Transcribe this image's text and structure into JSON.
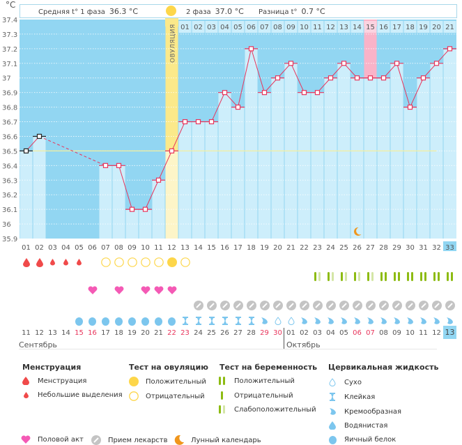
{
  "header": {
    "unit": "°C",
    "phase1_label": "Средняя t° 1 фаза",
    "phase1_value": "36.3 °C",
    "phase2_label": "2 фаза",
    "phase2_value": "37.0 °C",
    "diff_label": "Разница t°",
    "diff_value": "0.7 °C",
    "ovulation_label": "ОВУЛЯЦИЯ"
  },
  "colors": {
    "bg": "#92d6f2",
    "bar": "#cdeefb",
    "ovulation": "#fbe98a",
    "ovulation_light": "#fdf5c8",
    "highlight": "#f9b3c8",
    "line": "#e8345b",
    "coverline": "#f4ef9e",
    "today": "#92d6f2"
  },
  "chart_data": {
    "type": "line",
    "title": "",
    "ylabel": "°C",
    "ylim": [
      35.9,
      37.4
    ],
    "yticks": [
      37.4,
      37.3,
      37.2,
      37.1,
      37.0,
      36.9,
      36.8,
      36.7,
      36.6,
      36.5,
      36.4,
      36.3,
      36.2,
      36.1,
      36.0,
      35.9
    ],
    "ytick_labels": [
      "37.4",
      "37.3",
      "37.2",
      "37.1",
      "37",
      "36.9",
      "36.8",
      "36.7",
      "36.6",
      "36.5",
      "36.4",
      "36.3",
      "36.2",
      "36.1",
      "36",
      "35.9"
    ],
    "cycle_days": [
      "01",
      "02",
      "03",
      "04",
      "05",
      "06",
      "07",
      "08",
      "09",
      "10",
      "11",
      "12",
      "13",
      "14",
      "15",
      "16",
      "17",
      "18",
      "19",
      "20",
      "21",
      "22",
      "23",
      "24",
      "25",
      "26",
      "27",
      "28",
      "29",
      "30",
      "31",
      "32",
      "33"
    ],
    "temperatures": [
      36.5,
      36.6,
      null,
      null,
      null,
      null,
      36.4,
      36.4,
      36.1,
      36.1,
      36.3,
      36.5,
      36.7,
      36.7,
      36.7,
      36.9,
      36.8,
      37.2,
      36.9,
      37.0,
      37.1,
      36.9,
      36.9,
      37.0,
      37.1,
      37.0,
      37.0,
      37.0,
      37.1,
      36.8,
      37.0,
      37.1,
      37.2
    ],
    "excluded_points": [
      0,
      1
    ],
    "coverline": 36.5,
    "ovulation_day": 12,
    "phase2_day_numbers": [
      "01",
      "02",
      "03",
      "04",
      "05",
      "06",
      "07",
      "08",
      "09",
      "10",
      "11",
      "12",
      "13",
      "14",
      "15",
      "16",
      "17",
      "18",
      "19",
      "20",
      "21"
    ],
    "highlight_phase2_day": "15",
    "moon_day": 26,
    "today_day": 33
  },
  "calendar": {
    "dates": [
      "11",
      "12",
      "13",
      "14",
      "15",
      "16",
      "17",
      "18",
      "19",
      "20",
      "21",
      "22",
      "23",
      "24",
      "25",
      "26",
      "27",
      "28",
      "29",
      "30",
      "01",
      "02",
      "03",
      "04",
      "05",
      "06",
      "07",
      "08",
      "09",
      "10",
      "11",
      "12",
      "13"
    ],
    "weekend_idx": [
      4,
      5,
      11,
      12,
      18,
      19,
      25,
      26
    ],
    "month1": "Сентябрь",
    "month2": "Октябрь",
    "month2_start_idx": 20
  },
  "rows": {
    "menstruation": [
      "big",
      "big",
      "small",
      "small",
      "small",
      "",
      "",
      "",
      "",
      "",
      "",
      "",
      "",
      "",
      "",
      "",
      "",
      "",
      "",
      "",
      "",
      "",
      "",
      "",
      "",
      "",
      "",
      "",
      "",
      "",
      "",
      "",
      ""
    ],
    "ovulation_test": [
      "",
      "",
      "",
      "",
      "",
      "",
      "neg",
      "neg",
      "neg",
      "neg",
      "neg",
      "pos",
      "neg",
      "",
      "",
      "",
      "",
      "",
      "",
      "",
      "",
      "",
      "",
      "",
      "",
      "",
      "",
      "",
      "",
      "",
      "",
      "",
      ""
    ],
    "pregnancy_test": [
      "",
      "",
      "",
      "",
      "",
      "",
      "",
      "",
      "",
      "",
      "",
      "",
      "",
      "",
      "",
      "",
      "",
      "",
      "",
      "",
      "",
      "",
      "weak",
      "weak",
      "weak",
      "weak",
      "weak",
      "pos",
      "pos",
      "pos",
      "pos",
      "pos",
      "pos"
    ],
    "intercourse": [
      "",
      "",
      "",
      "",
      "",
      "yes",
      "",
      "yes",
      "",
      "yes",
      "yes",
      "yes",
      "",
      "",
      "",
      "",
      "",
      "",
      "",
      "",
      "",
      "",
      "",
      "",
      "",
      "",
      "",
      "",
      "",
      "",
      "",
      "",
      ""
    ],
    "medication": [
      "",
      "",
      "",
      "",
      "",
      "",
      "",
      "",
      "",
      "",
      "",
      "",
      "",
      "yes",
      "yes",
      "yes",
      "yes",
      "yes",
      "yes",
      "yes",
      "yes",
      "yes",
      "yes",
      "yes",
      "yes",
      "yes",
      "yes",
      "yes",
      "yes",
      "yes",
      "yes",
      "yes",
      "yes"
    ],
    "fluid": [
      "",
      "",
      "",
      "",
      "egg",
      "egg",
      "egg",
      "egg",
      "egg",
      "egg",
      "egg",
      "egg",
      "sticky",
      "sticky",
      "sticky",
      "sticky",
      "sticky",
      "sticky",
      "creamy",
      "dry",
      "dry",
      "creamy",
      "creamy",
      "creamy",
      "creamy",
      "creamy",
      "creamy",
      "creamy",
      "creamy",
      "creamy",
      "creamy",
      "creamy",
      "creamy"
    ]
  },
  "legend": {
    "menstruation": {
      "title": "Менструация",
      "items": [
        "Менструация",
        "Небольшие выделения"
      ]
    },
    "ovulation_test": {
      "title": "Тест на овуляцию",
      "items": [
        "Положительный",
        "Отрицательный"
      ]
    },
    "pregnancy_test": {
      "title": "Тест на беременность",
      "items": [
        "Положительный",
        "Отрицательный",
        "Слабоположительный"
      ]
    },
    "cervical_fluid": {
      "title": "Цервикальная жидкость",
      "items": [
        "Сухо",
        "Клейкая",
        "Кремообразная",
        "Водянистая",
        "Яичный белок"
      ]
    },
    "other": [
      "Половой акт",
      "Прием лекарств",
      "Лунный календарь"
    ]
  }
}
